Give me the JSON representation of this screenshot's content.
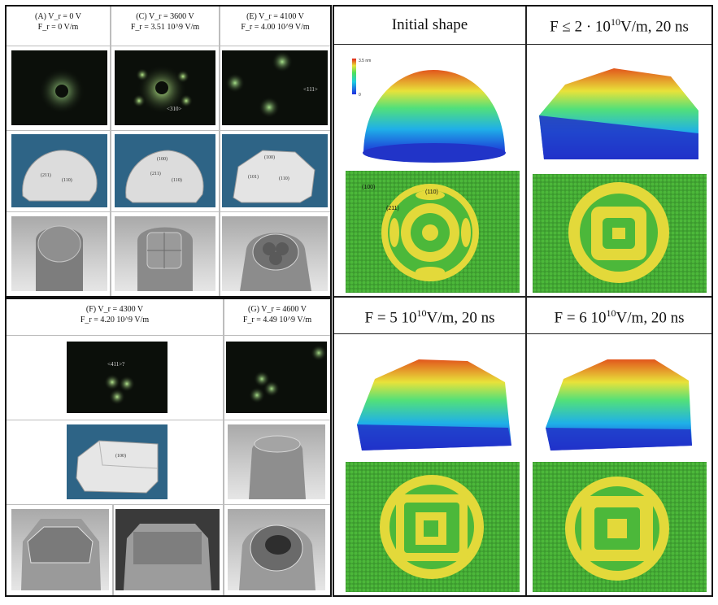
{
  "left_panel": {
    "top_row": [
      {
        "l1": "(A) V_r = 0 V",
        "l2": "F_r = 0 V/m"
      },
      {
        "l1": "(C) V_r = 3600 V",
        "l2": "F_r = 3.51 10^9 V/m"
      },
      {
        "l1": "(E) V_r = 4100 V",
        "l2": "F_r = 4.00 10^9 V/m"
      }
    ],
    "bottom_row": [
      {
        "l1": "(F) V_r = 4300 V",
        "l2": "F_r = 4.20 10^9 V/m"
      },
      {
        "l1": "(G) V_r = 4600 V",
        "l2": "F_r = 4.49 10^9 V/m"
      }
    ],
    "fim_labels": {
      "c": "<310>",
      "e": "<111>",
      "f": "<411>?"
    },
    "model_labels": {
      "a": [
        "(211)",
        "(110)"
      ],
      "c": [
        "(100)",
        "(211)",
        "(110)"
      ],
      "e": [
        "(100)",
        "(101)",
        "(110)"
      ],
      "f": [
        "(100)"
      ]
    }
  },
  "right_panel": {
    "titles": [
      "Initial shape",
      "F ≤ 2 · 10",
      "F = 5 10",
      "F = 6 10"
    ],
    "title_exp": "10",
    "title_units": [
      "",
      "V/m, 20 ns",
      "V/m, 20 ns",
      "V/m, 20 ns"
    ],
    "colorbar": {
      "max": "3.5 nm",
      "min": "0"
    },
    "facet_labels": [
      "(100)",
      "(110)",
      "(211)"
    ]
  }
}
